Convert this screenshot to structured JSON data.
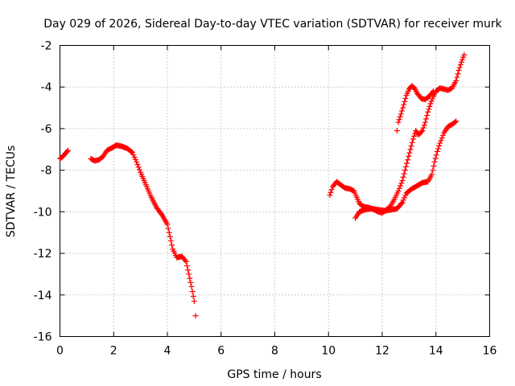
{
  "chart_data": {
    "type": "scatter",
    "title": "Day 029 of 2026, Sidereal Day-to-day VTEC variation (SDTVAR) for receiver murk",
    "xlabel": "GPS time / hours",
    "ylabel": "SDTVAR / TECUs",
    "xlim": [
      0,
      16
    ],
    "ylim": [
      -16,
      -2
    ],
    "xticks": [
      0,
      2,
      4,
      6,
      8,
      10,
      12,
      14,
      16
    ],
    "yticks": [
      -16,
      -14,
      -12,
      -10,
      -8,
      -6,
      -4,
      -2
    ],
    "grid": true,
    "marker": "plus",
    "color": "#ff0000",
    "segments": [
      [
        [
          0.0,
          -7.45
        ],
        [
          0.1,
          -7.35
        ],
        [
          0.2,
          -7.2
        ],
        [
          0.3,
          -7.05
        ]
      ],
      [
        [
          1.15,
          -7.45
        ],
        [
          1.3,
          -7.55
        ],
        [
          1.45,
          -7.5
        ],
        [
          1.6,
          -7.35
        ],
        [
          1.75,
          -7.05
        ],
        [
          1.9,
          -6.95
        ],
        [
          2.1,
          -6.8
        ],
        [
          2.3,
          -6.85
        ],
        [
          2.5,
          -6.95
        ],
        [
          2.7,
          -7.15
        ],
        [
          2.85,
          -7.6
        ],
        [
          3.0,
          -8.1
        ],
        [
          3.2,
          -8.7
        ],
        [
          3.4,
          -9.3
        ],
        [
          3.6,
          -9.8
        ],
        [
          3.8,
          -10.15
        ],
        [
          4.0,
          -10.6
        ],
        [
          4.1,
          -11.2
        ],
        [
          4.2,
          -11.8
        ],
        [
          4.35,
          -12.2
        ],
        [
          4.55,
          -12.15
        ],
        [
          4.7,
          -12.4
        ],
        [
          4.8,
          -13.0
        ],
        [
          4.9,
          -13.6
        ],
        [
          5.0,
          -14.3
        ],
        [
          5.05,
          -15.0
        ]
      ],
      [
        [
          10.05,
          -9.2
        ],
        [
          10.15,
          -8.8
        ],
        [
          10.3,
          -8.55
        ],
        [
          10.45,
          -8.7
        ],
        [
          10.6,
          -8.85
        ],
        [
          10.8,
          -8.9
        ],
        [
          10.95,
          -9.0
        ],
        [
          11.05,
          -9.3
        ],
        [
          11.15,
          -9.6
        ],
        [
          11.3,
          -9.75
        ],
        [
          11.5,
          -9.8
        ],
        [
          11.7,
          -9.9
        ],
        [
          11.85,
          -10.0
        ],
        [
          12.0,
          -10.05
        ],
        [
          12.15,
          -9.9
        ],
        [
          12.3,
          -9.75
        ],
        [
          12.45,
          -9.4
        ],
        [
          12.6,
          -9.0
        ],
        [
          12.75,
          -8.5
        ],
        [
          12.85,
          -8.0
        ],
        [
          12.95,
          -7.5
        ],
        [
          13.05,
          -7.0
        ],
        [
          13.15,
          -6.5
        ],
        [
          13.25,
          -6.1
        ],
        [
          13.35,
          -6.3
        ],
        [
          13.5,
          -6.1
        ],
        [
          13.6,
          -5.7
        ],
        [
          13.7,
          -5.2
        ],
        [
          13.8,
          -4.8
        ],
        [
          13.9,
          -4.45
        ],
        [
          14.0,
          -4.2
        ],
        [
          14.15,
          -4.05
        ],
        [
          14.3,
          -4.1
        ],
        [
          14.45,
          -4.15
        ],
        [
          14.6,
          -4.05
        ],
        [
          14.75,
          -3.7
        ],
        [
          14.85,
          -3.2
        ],
        [
          14.95,
          -2.8
        ],
        [
          15.05,
          -2.45
        ]
      ],
      [
        [
          11.0,
          -10.3
        ],
        [
          11.15,
          -10.0
        ],
        [
          11.35,
          -9.9
        ],
        [
          11.6,
          -9.85
        ],
        [
          11.85,
          -9.9
        ],
        [
          12.1,
          -9.95
        ],
        [
          12.35,
          -9.9
        ],
        [
          12.55,
          -9.85
        ],
        [
          12.75,
          -9.55
        ],
        [
          12.9,
          -9.1
        ],
        [
          13.1,
          -8.9
        ],
        [
          13.3,
          -8.75
        ],
        [
          13.5,
          -8.6
        ],
        [
          13.7,
          -8.55
        ],
        [
          13.85,
          -8.2
        ],
        [
          13.95,
          -7.6
        ],
        [
          14.05,
          -7.1
        ],
        [
          14.15,
          -6.7
        ],
        [
          14.3,
          -6.2
        ],
        [
          14.45,
          -5.9
        ],
        [
          14.6,
          -5.8
        ],
        [
          14.75,
          -5.65
        ]
      ],
      [
        [
          12.55,
          -6.1
        ],
        [
          12.6,
          -5.7
        ],
        [
          12.7,
          -5.3
        ],
        [
          12.8,
          -4.85
        ],
        [
          12.9,
          -4.4
        ],
        [
          13.0,
          -4.1
        ],
        [
          13.1,
          -3.95
        ],
        [
          13.2,
          -4.05
        ],
        [
          13.3,
          -4.3
        ],
        [
          13.45,
          -4.55
        ],
        [
          13.6,
          -4.6
        ],
        [
          13.75,
          -4.45
        ],
        [
          13.9,
          -4.2
        ]
      ]
    ]
  }
}
